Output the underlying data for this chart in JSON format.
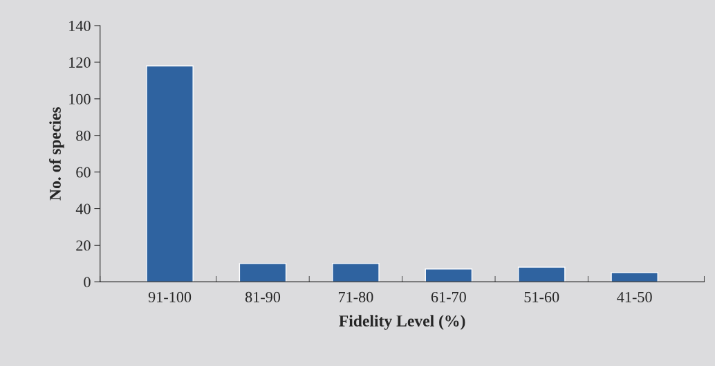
{
  "chart_data": {
    "type": "bar",
    "xlabel": "Fidelity Level (%)",
    "ylabel": "No. of species",
    "categories": [
      "91-100",
      "81-90",
      "71-80",
      "61-70",
      "51-60",
      "41-50"
    ],
    "values": [
      118,
      10,
      10,
      7,
      8,
      5
    ],
    "color": "#2f63a0",
    "ylim": [
      0,
      140
    ],
    "yticks": [
      0,
      20,
      40,
      60,
      80,
      100,
      120,
      140
    ],
    "grid": false
  }
}
